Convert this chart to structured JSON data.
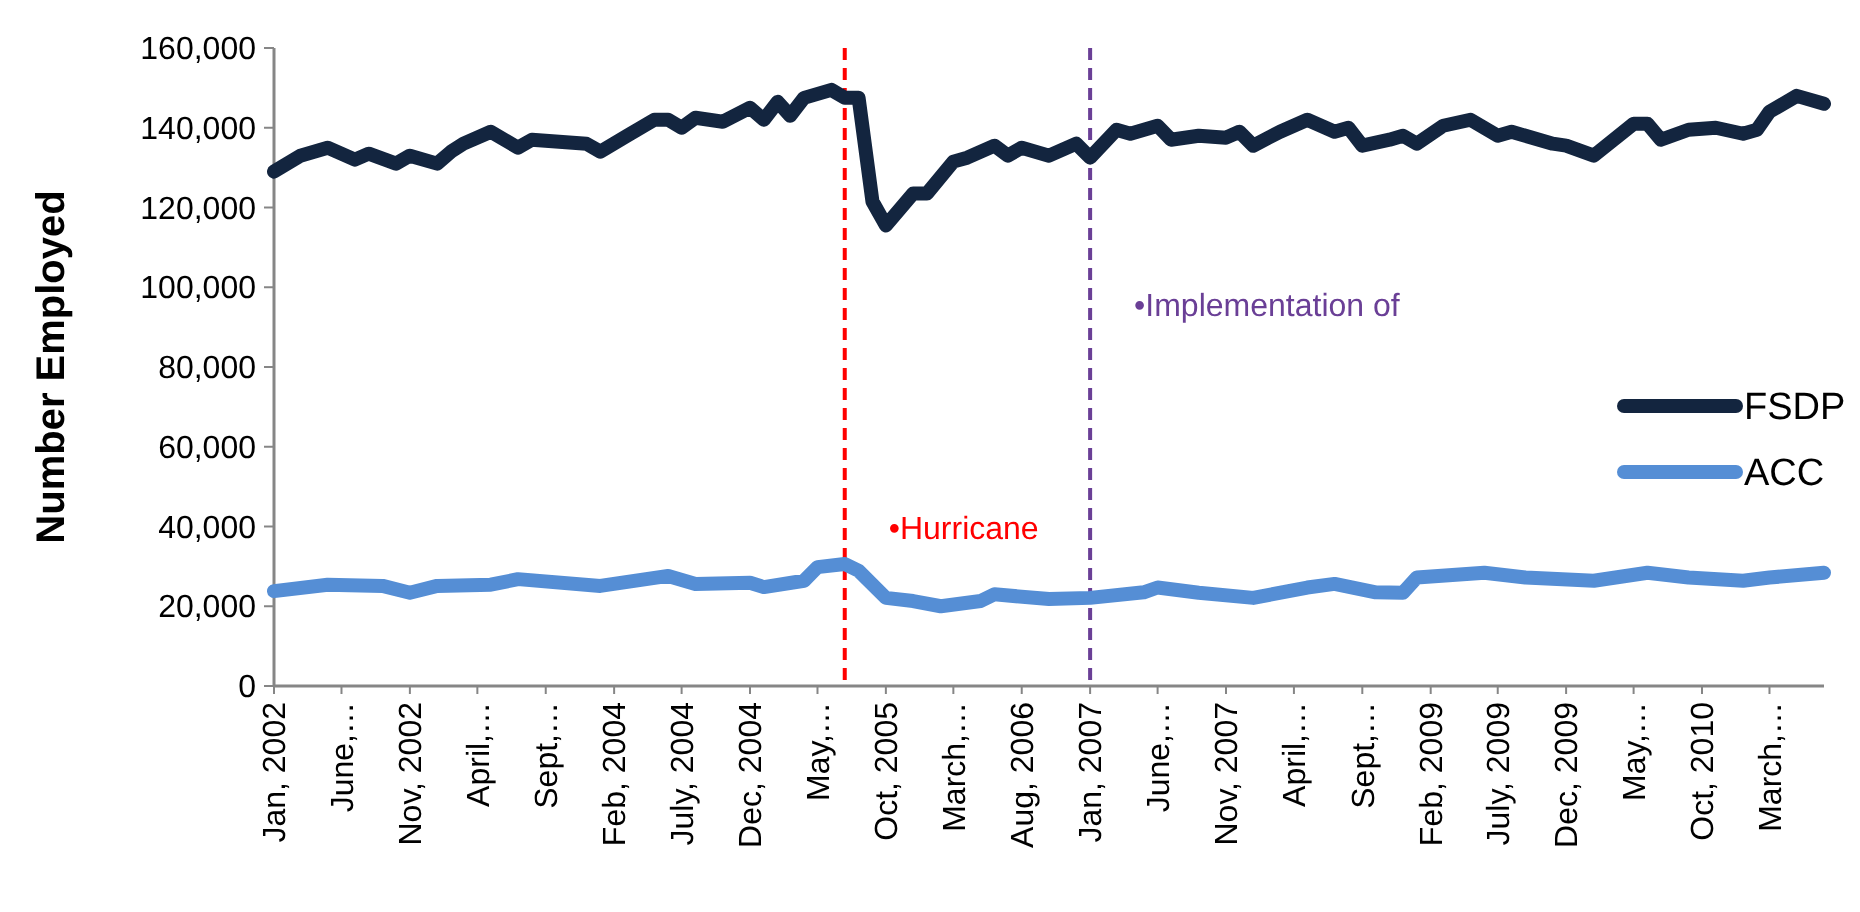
{
  "chart_data": {
    "type": "line",
    "ylabel": "Number Employed",
    "xlim": [
      "2002-01",
      "2011-07"
    ],
    "xticks": [
      {
        "value": "2002-01",
        "label": "Jan, 2002"
      },
      {
        "value": "2002-06",
        "label": "June,…"
      },
      {
        "value": "2002-11",
        "label": "Nov, 2002"
      },
      {
        "value": "2003-04",
        "label": "April,…"
      },
      {
        "value": "2003-09",
        "label": "Sept,…"
      },
      {
        "value": "2004-02",
        "label": "Feb, 2004"
      },
      {
        "value": "2004-07",
        "label": "July, 2004"
      },
      {
        "value": "2004-12",
        "label": "Dec, 2004"
      },
      {
        "value": "2005-05",
        "label": "May,…"
      },
      {
        "value": "2005-10",
        "label": "Oct, 2005"
      },
      {
        "value": "2006-03",
        "label": "March,…"
      },
      {
        "value": "2006-08",
        "label": "Aug, 2006"
      },
      {
        "value": "2007-01",
        "label": "Jan, 2007"
      },
      {
        "value": "2007-06",
        "label": "June,…"
      },
      {
        "value": "2007-11",
        "label": "Nov, 2007"
      },
      {
        "value": "2008-04",
        "label": "April,…"
      },
      {
        "value": "2008-09",
        "label": "Sept,…"
      },
      {
        "value": "2009-02",
        "label": "Feb, 2009"
      },
      {
        "value": "2009-07",
        "label": "July, 2009"
      },
      {
        "value": "2009-12",
        "label": "Dec, 2009"
      },
      {
        "value": "2010-05",
        "label": "May,…"
      },
      {
        "value": "2010-10",
        "label": "Oct, 2010"
      },
      {
        "value": "2011-03",
        "label": "March,…"
      }
    ],
    "ylim": [
      0,
      160000
    ],
    "yticks": [
      0,
      {
        "value": 20000,
        "label": "20,000"
      },
      {
        "value": 40000,
        "label": "40,000"
      },
      {
        "value": 60000,
        "label": "60,000"
      },
      {
        "value": 80000,
        "label": "80,000"
      },
      {
        "value": 100000,
        "label": "100,000"
      },
      {
        "value": 120000,
        "label": "120,000"
      },
      {
        "value": 140000,
        "label": "140,000"
      },
      {
        "value": 160000,
        "label": "160,000"
      }
    ],
    "grid": false,
    "legend": "right",
    "marker": "none",
    "line_style": "solid",
    "ref_lines": [
      {
        "axis": "x",
        "value": "2005-07",
        "label": "•Hurricane",
        "color": "#ff0000",
        "line_style": "dashed"
      },
      {
        "axis": "x",
        "value": "2007-01",
        "label": "•Implementation of",
        "color": "#6a3f96",
        "line_style": "dashed"
      }
    ],
    "series": [
      {
        "name": "FSDP",
        "color": "#13253f",
        "x": [
          "2002-01",
          "2002-03",
          "2002-05",
          "2002-07",
          "2002-08",
          "2002-10",
          "2002-11",
          "2003-01",
          "2003-02",
          "2003-03",
          "2003-05",
          "2003-07",
          "2003-08",
          "2003-12",
          "2004-01",
          "2004-03",
          "2004-05",
          "2004-06",
          "2004-07",
          "2004-08",
          "2004-10",
          "2004-12",
          "2005-01",
          "2005-02",
          "2005-03",
          "2005-04",
          "2005-06",
          "2005-07",
          "2005-08",
          "2005-09",
          "2005-10",
          "2005-12",
          "2006-01",
          "2006-03",
          "2006-04",
          "2006-06",
          "2006-07",
          "2006-08",
          "2006-10",
          "2006-12",
          "2007-01",
          "2007-03",
          "2007-04",
          "2007-06",
          "2007-07",
          "2007-09",
          "2007-11",
          "2007-12",
          "2008-01",
          "2008-03",
          "2008-05",
          "2008-07",
          "2008-08",
          "2008-09",
          "2008-11",
          "2008-12",
          "2009-01",
          "2009-03",
          "2009-05",
          "2009-07",
          "2009-08",
          "2009-11",
          "2009-12",
          "2010-02",
          "2010-05",
          "2010-06",
          "2010-07",
          "2010-09",
          "2010-11",
          "2011-01",
          "2011-02",
          "2011-03",
          "2011-05",
          "2011-07"
        ],
        "values": [
          129000,
          133000,
          135000,
          132000,
          133500,
          131000,
          133000,
          131000,
          134000,
          136000,
          139000,
          135000,
          137000,
          136000,
          134000,
          138000,
          142000,
          142000,
          140000,
          142500,
          141500,
          145000,
          142000,
          146500,
          143000,
          147500,
          149500,
          147500,
          147500,
          121500,
          115500,
          123500,
          123500,
          131500,
          132500,
          135500,
          133000,
          135000,
          133000,
          136000,
          132500,
          139500,
          138500,
          140500,
          137000,
          138000,
          137500,
          139000,
          135500,
          139000,
          142000,
          139000,
          140000,
          135500,
          137000,
          138000,
          136000,
          140500,
          142000,
          138000,
          139000,
          136000,
          135500,
          133000,
          141000,
          141000,
          137000,
          139500,
          140000,
          138500,
          139500,
          144000,
          148000,
          146000
        ]
      },
      {
        "name": "ACC",
        "color": "#558ed5",
        "x": [
          "2002-01",
          "2002-05",
          "2002-09",
          "2002-11",
          "2003-01",
          "2003-05",
          "2003-07",
          "2004-01",
          "2004-06",
          "2004-08",
          "2004-12",
          "2005-01",
          "2005-04",
          "2005-05",
          "2005-07",
          "2005-08",
          "2005-10",
          "2005-12",
          "2006-02",
          "2006-05",
          "2006-06",
          "2006-10",
          "2007-01",
          "2007-05",
          "2007-06",
          "2007-09",
          "2008-01",
          "2008-05",
          "2008-07",
          "2008-10",
          "2008-12",
          "2009-01",
          "2009-06",
          "2009-09",
          "2010-02",
          "2010-06",
          "2010-09",
          "2011-01",
          "2011-03",
          "2011-07"
        ],
        "values": [
          23800,
          25400,
          25100,
          23400,
          25100,
          25400,
          26800,
          25100,
          27600,
          25600,
          25900,
          24800,
          26400,
          29800,
          30600,
          28900,
          22100,
          21300,
          20000,
          21300,
          23000,
          21800,
          22100,
          23500,
          24700,
          23400,
          22100,
          24700,
          25600,
          23500,
          23400,
          27200,
          28400,
          27200,
          26400,
          28400,
          27200,
          26400,
          27200,
          28400
        ]
      }
    ]
  }
}
